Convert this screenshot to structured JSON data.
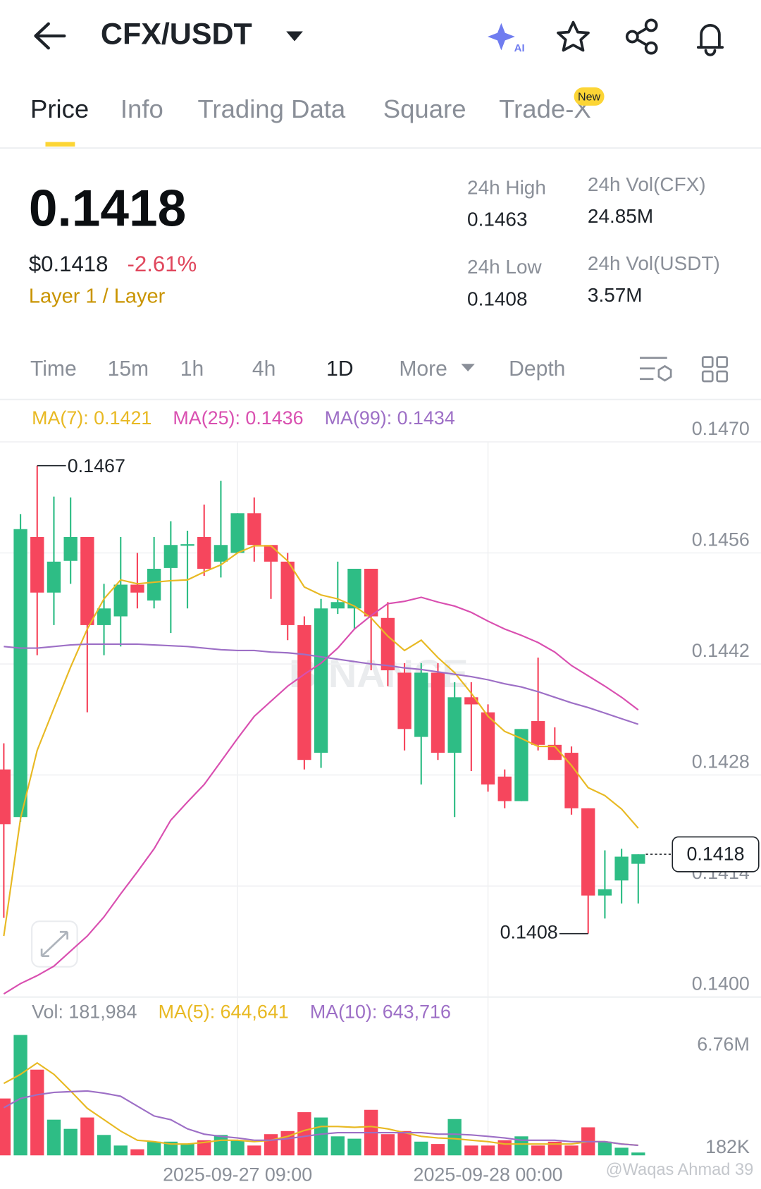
{
  "header": {
    "pair": "CFX/USDT",
    "ai": "AI"
  },
  "tabs": [
    "Price",
    "Info",
    "Trading Data",
    "Square",
    "Trade-X"
  ],
  "new_badge": "New",
  "price": {
    "last": "0.1418",
    "usd": "$0.1418",
    "change": "-2.61%",
    "sector": "Layer 1 / Layer"
  },
  "stats": [
    {
      "label": "24h High",
      "value": "0.1463"
    },
    {
      "label": "24h Vol(CFX)",
      "value": "24.85M"
    },
    {
      "label": "24h Low",
      "value": "0.1408"
    },
    {
      "label": "24h Vol(USDT)",
      "value": "3.57M"
    }
  ],
  "intervals": [
    "Time",
    "15m",
    "1h",
    "4h",
    "1D",
    "More",
    "Depth"
  ],
  "watermarks": [
    "BINANCE",
    "@Waqas Ahmad 39"
  ],
  "chart_data": [
    {
      "type": "candlestick",
      "categories": [
        null,
        null,
        null,
        null,
        null,
        null,
        null,
        null,
        null,
        null,
        null,
        null,
        null,
        null,
        "2025-09-27 09:00",
        null,
        null,
        null,
        null,
        null,
        null,
        null,
        null,
        null,
        null,
        null,
        null,
        null,
        null,
        "2025-09-28 00:00",
        null,
        null,
        null,
        null,
        null,
        null,
        null,
        null,
        null
      ],
      "open": [
        0.14287,
        0.14227,
        0.1458,
        0.1451,
        0.1455,
        0.1458,
        0.14469,
        0.1448,
        0.1452,
        0.145,
        0.14541,
        0.14569,
        0.1458,
        0.14549,
        0.1456,
        0.1461,
        0.1457,
        0.14549,
        0.14469,
        0.14308,
        0.1449,
        0.1449,
        0.1454,
        0.14478,
        0.14409,
        0.14328,
        0.14409,
        0.14308,
        0.14378,
        0.14359,
        0.14278,
        0.14247,
        0.14348,
        0.14318,
        0.14308,
        0.14238,
        0.14128,
        0.14147,
        0.14168
      ],
      "close": [
        0.14218,
        0.1459,
        0.1451,
        0.14549,
        0.1458,
        0.14469,
        0.1449,
        0.1452,
        0.1451,
        0.1454,
        0.1457,
        0.14571,
        0.1454,
        0.1457,
        0.1461,
        0.1457,
        0.14549,
        0.14469,
        0.14299,
        0.1449,
        0.14498,
        0.1454,
        0.1448,
        0.14412,
        0.14338,
        0.14409,
        0.14308,
        0.14378,
        0.14369,
        0.14268,
        0.14247,
        0.14338,
        0.14318,
        0.14299,
        0.14238,
        0.14128,
        0.14136,
        0.14177,
        0.1418
      ],
      "high": [
        0.1432,
        0.14609,
        0.1467,
        0.14631,
        0.1463,
        0.1458,
        0.14521,
        0.1458,
        0.1456,
        0.1458,
        0.146,
        0.14588,
        0.14621,
        0.14651,
        0.1461,
        0.1463,
        0.1457,
        0.1456,
        0.1448,
        0.14502,
        0.14549,
        0.1454,
        0.1454,
        0.14498,
        0.14421,
        0.14421,
        0.14421,
        0.14397,
        0.14397,
        0.14369,
        0.14287,
        0.14338,
        0.14428,
        0.1434,
        0.14316,
        0.14238,
        0.14185,
        0.14187,
        0.1418
      ],
      "low": [
        0.141,
        0.14221,
        0.14431,
        0.14469,
        0.14521,
        0.14359,
        0.14431,
        0.14442,
        0.1449,
        0.1449,
        0.14459,
        0.1449,
        0.14531,
        0.14529,
        0.1456,
        0.14549,
        0.14502,
        0.1445,
        0.14287,
        0.14289,
        0.14483,
        0.14464,
        0.14412,
        0.14392,
        0.14311,
        0.14268,
        0.14299,
        0.14227,
        0.14285,
        0.14259,
        0.14238,
        0.14247,
        0.14311,
        0.14299,
        0.1423,
        0.1408,
        0.14099,
        0.14118,
        0.14118
      ],
      "up_color": "#2ebd85",
      "down_color": "#f6465d",
      "series": [
        {
          "name": "MA(7): 0.1421",
          "color": "#e8b923",
          "values": [
            0.14077,
            0.14225,
            0.14311,
            0.14364,
            0.14416,
            0.14464,
            0.14502,
            0.14526,
            0.14521,
            0.14523,
            0.14525,
            0.14526,
            0.14536,
            0.14545,
            0.1456,
            0.14569,
            0.14569,
            0.1455,
            0.14517,
            0.14507,
            0.14502,
            0.14493,
            0.14478,
            0.14455,
            0.14437,
            0.1445,
            0.14428,
            0.14409,
            0.14383,
            0.14354,
            0.14335,
            0.14326,
            0.14316,
            0.14316,
            0.14292,
            0.14264,
            0.14254,
            0.14237,
            0.14213
          ]
        },
        {
          "name": "MA(25): 0.1436",
          "color": "#d94fb0",
          "values": [
            0.14004,
            0.14017,
            0.14027,
            0.14039,
            0.14058,
            0.14077,
            0.14101,
            0.1413,
            0.14158,
            0.14187,
            0.14223,
            0.14246,
            0.14268,
            0.14297,
            0.14326,
            0.14354,
            0.14373,
            0.14392,
            0.14407,
            0.14421,
            0.1444,
            0.14464,
            0.14481,
            0.14496,
            0.14499,
            0.14504,
            0.14498,
            0.14493,
            0.14485,
            0.14474,
            0.14464,
            0.14456,
            0.14447,
            0.14435,
            0.14418,
            0.14405,
            0.14392,
            0.14378,
            0.14362
          ]
        },
        {
          "name": "MA(99): 0.1434",
          "color": "#9d6fc6",
          "values": [
            0.14442,
            0.1444,
            0.1444,
            0.14442,
            0.14444,
            0.14445,
            0.14445,
            0.14445,
            0.14445,
            0.14444,
            0.14443,
            0.14442,
            0.1444,
            0.14438,
            0.14437,
            0.14437,
            0.14435,
            0.14434,
            0.14432,
            0.14429,
            0.14426,
            0.14423,
            0.1442,
            0.14418,
            0.14415,
            0.14413,
            0.1441,
            0.14407,
            0.14404,
            0.144,
            0.14395,
            0.14391,
            0.14385,
            0.14378,
            0.14371,
            0.14365,
            0.14358,
            0.14351,
            0.14344
          ]
        }
      ],
      "max_label": "0.1467",
      "min_label": "0.1408",
      "last_label": "0.1418",
      "ylim": [
        0.14,
        0.147
      ],
      "yticks": [
        {
          "value": 0.147,
          "label": "0.1470"
        },
        0.1456,
        0.1442,
        0.1428,
        0.1414,
        {
          "value": 0.14,
          "label": "0.1400"
        }
      ],
      "grid": true
    },
    {
      "type": "bar",
      "series": [
        {
          "name": "Vol: 181,984",
          "values": [
            3650000,
            7730000,
            5500000,
            2290000,
            1700000,
            2430000,
            1310000,
            630000,
            390000,
            880000,
            880000,
            730000,
            970000,
            1310000,
            970000,
            630000,
            1360000,
            1560000,
            2770000,
            2430000,
            1220000,
            1070000,
            2920000,
            1360000,
            1560000,
            880000,
            730000,
            2330000,
            630000,
            630000,
            970000,
            1220000,
            630000,
            880000,
            630000,
            1800000,
            880000,
            490000,
            181984
          ]
        },
        {
          "name": "MA(5): 644,641",
          "color": "#e8b923",
          "values": [
            4620000,
            5200000,
            5930000,
            5200000,
            4130000,
            3020000,
            2290000,
            1560000,
            970000,
            880000,
            730000,
            730000,
            830000,
            970000,
            970000,
            880000,
            970000,
            1220000,
            1600000,
            1850000,
            1850000,
            1800000,
            1850000,
            1700000,
            1460000,
            1220000,
            1120000,
            1070000,
            970000,
            880000,
            730000,
            730000,
            730000,
            730000,
            730000,
            880000,
            880000,
            730000,
            644641
          ]
        },
        {
          "name": "MA(10): 643,716",
          "color": "#9d6fc6",
          "values": [
            3060000,
            3650000,
            3890000,
            4040000,
            4090000,
            4130000,
            3990000,
            3790000,
            3160000,
            2530000,
            2290000,
            1700000,
            1360000,
            1220000,
            1120000,
            970000,
            970000,
            1070000,
            1220000,
            1360000,
            1460000,
            1460000,
            1460000,
            1460000,
            1460000,
            1460000,
            1360000,
            1360000,
            1310000,
            1220000,
            1120000,
            970000,
            970000,
            970000,
            880000,
            880000,
            880000,
            730000,
            643716
          ]
        }
      ],
      "ylim": [
        0,
        7730000
      ],
      "yticks": [
        {
          "value": 6760000,
          "label": "6.76M"
        },
        {
          "value": 182000,
          "label": "182K"
        }
      ]
    }
  ]
}
